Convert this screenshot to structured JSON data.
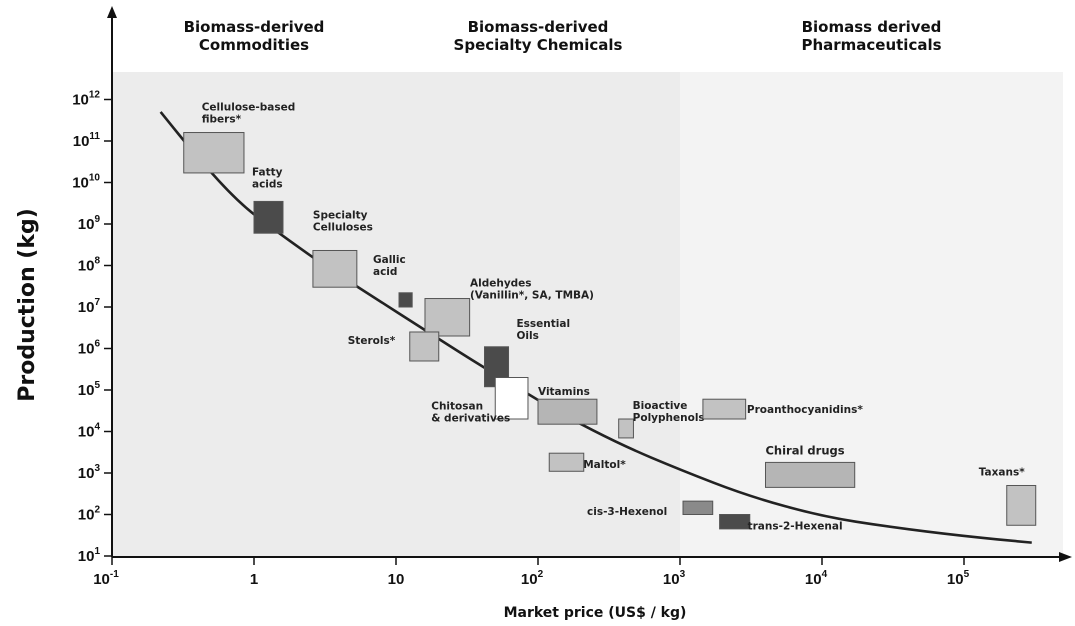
{
  "chart_data": {
    "type": "scatter",
    "xlabel": "Market price (US$ / kg)",
    "ylabel": "Production (kg)",
    "xscale": "log",
    "yscale": "log",
    "xlim": [
      0.1,
      500000
    ],
    "ylim": [
      10,
      10000000000000
    ],
    "x_ticks": [
      {
        "value": 0.1,
        "base": "10",
        "exp": "-1"
      },
      {
        "value": 1,
        "base": "1",
        "exp": ""
      },
      {
        "value": 10,
        "base": "10",
        "exp": ""
      },
      {
        "value": 100,
        "base": "10",
        "exp": "2"
      },
      {
        "value": 1000,
        "base": "10",
        "exp": "3"
      },
      {
        "value": 10000,
        "base": "10",
        "exp": "4"
      },
      {
        "value": 100000,
        "base": "10",
        "exp": "5"
      }
    ],
    "y_ticks": [
      {
        "value": 10,
        "base": "10",
        "exp": "1"
      },
      {
        "value": 100,
        "base": "10",
        "exp": "2"
      },
      {
        "value": 1000,
        "base": "10",
        "exp": "3"
      },
      {
        "value": 10000,
        "base": "10",
        "exp": "4"
      },
      {
        "value": 100000,
        "base": "10",
        "exp": "5"
      },
      {
        "value": 1000000,
        "base": "10",
        "exp": "6"
      },
      {
        "value": 10000000,
        "base": "10",
        "exp": "7"
      },
      {
        "value": 100000000,
        "base": "10",
        "exp": "8"
      },
      {
        "value": 1000000000,
        "base": "10",
        "exp": "9"
      },
      {
        "value": 10000000000,
        "base": "10",
        "exp": "10"
      },
      {
        "value": 100000000000,
        "base": "10",
        "exp": "11"
      },
      {
        "value": 1000000000000,
        "base": "10",
        "exp": "12"
      }
    ],
    "regions": [
      {
        "title_lines": [
          "Biomass-derived",
          "Commodities"
        ],
        "x_range": [
          0.1,
          10
        ],
        "shade": "#ececec"
      },
      {
        "title_lines": [
          "Biomass-derived",
          "Specialty Chemicals"
        ],
        "x_range": [
          10,
          1000
        ],
        "shade": "#ececec"
      },
      {
        "title_lines": [
          "Biomass derived",
          "Pharmaceuticals"
        ],
        "x_range": [
          1000,
          500000
        ],
        "shade": "#f3f3f3"
      }
    ],
    "trend_curve": [
      [
        0.22,
        500000000000
      ],
      [
        0.4,
        40000000000
      ],
      [
        0.8,
        3000000000
      ],
      [
        1.5,
        600000000
      ],
      [
        3,
        110000000
      ],
      [
        7,
        17000000
      ],
      [
        15,
        3200000
      ],
      [
        35,
        500000
      ],
      [
        70,
        120000
      ],
      [
        150,
        25000
      ],
      [
        400,
        4500
      ],
      [
        1000,
        1200
      ],
      [
        3000,
        280
      ],
      [
        10000,
        90
      ],
      [
        30000,
        50
      ],
      [
        100000,
        30
      ],
      [
        300000,
        21
      ]
    ],
    "items": [
      {
        "label_lines": [
          "Cellulose-based",
          "fibers*"
        ],
        "x": [
          0.32,
          0.85
        ],
        "y": [
          17000000000,
          160000000000
        ],
        "fill": "#c2c2c2"
      },
      {
        "label_lines": [
          "Fatty",
          "acids"
        ],
        "x": [
          1,
          1.6
        ],
        "y": [
          600000000,
          3500000000
        ],
        "fill": "#4b4b4b"
      },
      {
        "label_lines": [
          "Specialty",
          "Celluloses"
        ],
        "x": [
          2.6,
          5.3
        ],
        "y": [
          30000000,
          230000000
        ],
        "fill": "#c2c2c2"
      },
      {
        "label_lines": [
          "Gallic",
          "acid"
        ],
        "x": [
          10.5,
          13
        ],
        "y": [
          10000000,
          22000000
        ],
        "fill": "#4b4b4b"
      },
      {
        "label_lines": [
          "Aldehydes",
          "(Vanillin*, SA, TMBA)"
        ],
        "x": [
          16,
          33
        ],
        "y": [
          2000000,
          16000000
        ],
        "fill": "#c2c2c2"
      },
      {
        "label_lines": [
          "Sterols*"
        ],
        "x": [
          12.5,
          20
        ],
        "y": [
          500000,
          2500000
        ],
        "fill": "#c2c2c2"
      },
      {
        "label_lines": [
          "Essential",
          "Oils"
        ],
        "x": [
          42,
          62
        ],
        "y": [
          120000,
          1100000
        ],
        "fill": "#4b4b4b"
      },
      {
        "label_lines": [
          "Chitosan",
          "& derivatives"
        ],
        "x": [
          50,
          85
        ],
        "y": [
          20000,
          200000
        ],
        "fill": "#ffffff"
      },
      {
        "label_lines": [
          "Vitamins"
        ],
        "x": [
          100,
          260
        ],
        "y": [
          15000,
          60000
        ],
        "fill": "#b5b5b5"
      },
      {
        "label_lines": [
          "Bioactive",
          "Polyphenols"
        ],
        "x": [
          370,
          470
        ],
        "y": [
          7000,
          20000
        ],
        "fill": "#c2c2c2"
      },
      {
        "label_lines": [
          "Maltol*"
        ],
        "x": [
          120,
          210
        ],
        "y": [
          1100,
          3000
        ],
        "fill": "#c2c2c2"
      },
      {
        "label_lines": [
          "Proanthocyanidins*"
        ],
        "x": [
          1450,
          2900
        ],
        "y": [
          20000,
          60000
        ],
        "fill": "#c2c2c2"
      },
      {
        "label_lines": [
          "Chiral drugs"
        ],
        "x": [
          4000,
          17000
        ],
        "y": [
          450,
          1800
        ],
        "fill": "#b5b5b5"
      },
      {
        "label_lines": [
          "Taxans*"
        ],
        "x": [
          200000,
          320000
        ],
        "y": [
          55,
          500
        ],
        "fill": "#c2c2c2"
      },
      {
        "label_lines": [
          "cis-3-Hexenol"
        ],
        "x": [
          1050,
          1700
        ],
        "y": [
          100,
          210
        ],
        "fill": "#8a8a8a"
      },
      {
        "label_lines": [
          "trans-2-Hexenal"
        ],
        "x": [
          1900,
          3100
        ],
        "y": [
          45,
          100
        ],
        "fill": "#4b4b4b"
      }
    ]
  }
}
